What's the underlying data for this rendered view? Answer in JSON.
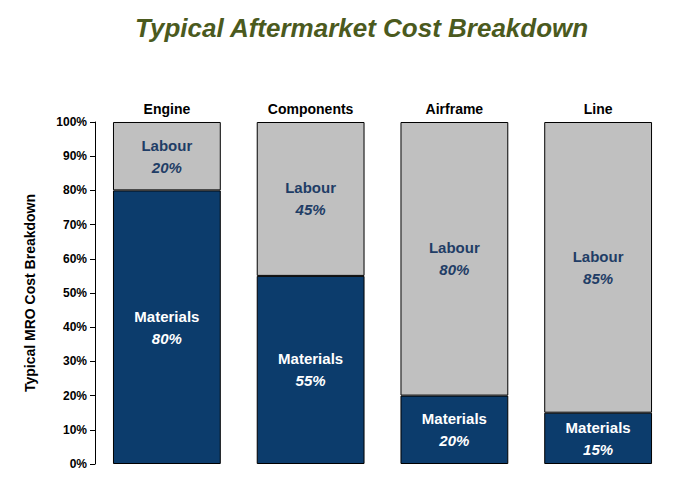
{
  "chart_data": {
    "type": "bar",
    "title": "Typical Aftermarket Cost Breakdown",
    "y_label": "Typical MRO Cost Breakdown",
    "categories": [
      "Engine",
      "Components",
      "Airframe",
      "Line"
    ],
    "series": [
      {
        "name": "Materials",
        "color": "#0c3c6c",
        "values": [
          80,
          55,
          20,
          15
        ],
        "value_labels": [
          "80%",
          "55%",
          "20%",
          "15%"
        ]
      },
      {
        "name": "Labour",
        "color": "#c0c0c0",
        "values": [
          20,
          45,
          80,
          85
        ],
        "value_labels": [
          "20%",
          "45%",
          "80%",
          "85%"
        ]
      }
    ],
    "ylim": [
      0,
      100
    ],
    "yticks": [
      {
        "value": 0,
        "label": "0%"
      },
      {
        "value": 10,
        "label": "10%"
      },
      {
        "value": 20,
        "label": "20%"
      },
      {
        "value": 30,
        "label": "30%"
      },
      {
        "value": 40,
        "label": "40%"
      },
      {
        "value": 50,
        "label": "50%"
      },
      {
        "value": 60,
        "label": "60%"
      },
      {
        "value": 70,
        "label": "70%"
      },
      {
        "value": 80,
        "label": "80%"
      },
      {
        "value": 90,
        "label": "90%"
      },
      {
        "value": 100,
        "label": "100%"
      }
    ],
    "stacked": true,
    "data_labels": true,
    "grid": false
  }
}
